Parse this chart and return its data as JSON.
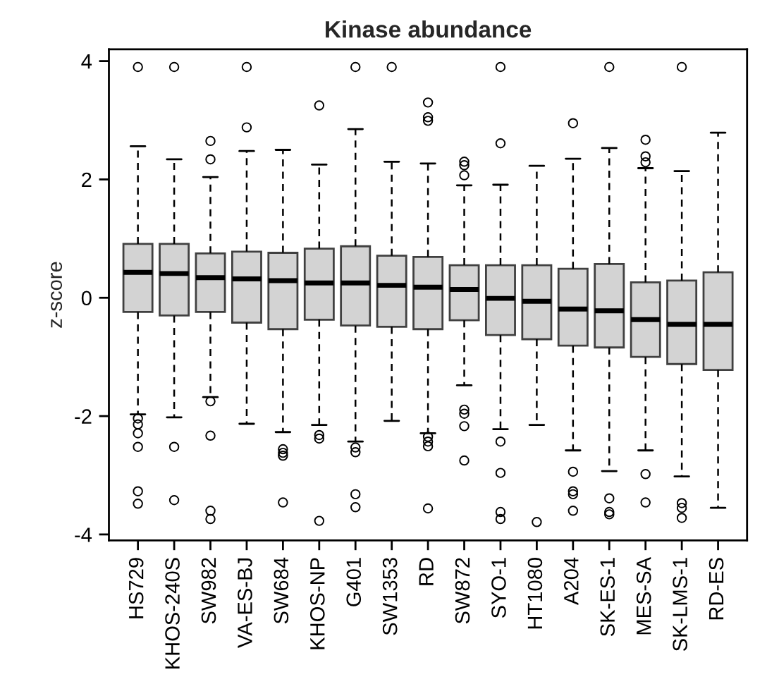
{
  "chart_data": {
    "type": "box",
    "title": "Kinase abundance",
    "ylabel": "z-score",
    "categories": [
      "HS729",
      "KHOS-240S",
      "SW982",
      "VA-ES-BJ",
      "SW684",
      "KHOS-NP",
      "G401",
      "SW1353",
      "RD",
      "SW872",
      "SYO-1",
      "HT1080",
      "A204",
      "SK-ES-1",
      "MES-SA",
      "SK-LMS-1",
      "RD-ES"
    ],
    "color": "#d3d3d3",
    "boxes": [
      {
        "low": -1.97,
        "q1": -0.24,
        "median": 0.43,
        "q3": 0.91,
        "high": 2.56,
        "outliers": [
          3.9,
          -2.04,
          -2.14,
          -2.29,
          -2.52,
          -3.27,
          -3.48
        ]
      },
      {
        "low": -2.02,
        "q1": -0.3,
        "median": 0.41,
        "q3": 0.91,
        "high": 2.34,
        "outliers": [
          3.9,
          -2.52,
          -3.42
        ]
      },
      {
        "low": -1.68,
        "q1": -0.24,
        "median": 0.34,
        "q3": 0.75,
        "high": 2.04,
        "outliers": [
          2.65,
          2.34,
          -1.75,
          -2.33,
          -3.6,
          -3.74
        ]
      },
      {
        "low": -2.13,
        "q1": -0.42,
        "median": 0.32,
        "q3": 0.78,
        "high": 2.48,
        "outliers": [
          3.9,
          2.88
        ]
      },
      {
        "low": -2.27,
        "q1": -0.53,
        "median": 0.29,
        "q3": 0.76,
        "high": 2.5,
        "outliers": [
          -2.56,
          -2.62,
          -2.67,
          -3.46
        ]
      },
      {
        "low": -2.15,
        "q1": -0.37,
        "median": 0.25,
        "q3": 0.83,
        "high": 2.25,
        "outliers": [
          3.25,
          -2.32,
          -2.38,
          -3.77
        ]
      },
      {
        "low": -2.43,
        "q1": -0.47,
        "median": 0.25,
        "q3": 0.87,
        "high": 2.85,
        "outliers": [
          3.9,
          -2.53,
          -2.61,
          -3.32,
          -3.54
        ]
      },
      {
        "low": -2.08,
        "q1": -0.49,
        "median": 0.21,
        "q3": 0.71,
        "high": 2.3,
        "outliers": [
          3.9
        ]
      },
      {
        "low": -2.29,
        "q1": -0.53,
        "median": 0.18,
        "q3": 0.69,
        "high": 2.27,
        "outliers": [
          3.3,
          3.05,
          2.99,
          -2.35,
          -2.43,
          -2.51,
          -3.56
        ]
      },
      {
        "low": -1.48,
        "q1": -0.38,
        "median": 0.14,
        "q3": 0.55,
        "high": 1.9,
        "outliers": [
          2.3,
          2.24,
          2.07,
          -1.89,
          -1.96,
          -2.17,
          -2.75
        ]
      },
      {
        "low": -2.22,
        "q1": -0.63,
        "median": -0.01,
        "q3": 0.55,
        "high": 1.91,
        "outliers": [
          3.9,
          2.61,
          -2.43,
          -2.96,
          -3.62,
          -3.74
        ]
      },
      {
        "low": -2.15,
        "q1": -0.7,
        "median": -0.06,
        "q3": 0.55,
        "high": 2.23,
        "outliers": [
          -3.79
        ]
      },
      {
        "low": -2.58,
        "q1": -0.81,
        "median": -0.19,
        "q3": 0.49,
        "high": 2.35,
        "outliers": [
          2.95,
          -2.94,
          -3.27,
          -3.32,
          -3.6
        ]
      },
      {
        "low": -2.93,
        "q1": -0.84,
        "median": -0.22,
        "q3": 0.57,
        "high": 2.53,
        "outliers": [
          3.9,
          -3.39,
          -3.62,
          -3.66
        ]
      },
      {
        "low": -2.58,
        "q1": -1.0,
        "median": -0.37,
        "q3": 0.26,
        "high": 2.19,
        "outliers": [
          2.67,
          2.39,
          2.29,
          -2.98,
          -3.46
        ]
      },
      {
        "low": -3.02,
        "q1": -1.12,
        "median": -0.45,
        "q3": 0.29,
        "high": 2.14,
        "outliers": [
          3.9,
          -3.47,
          -3.55,
          -3.72
        ]
      },
      {
        "low": -3.55,
        "q1": -1.22,
        "median": -0.45,
        "q3": 0.43,
        "high": 2.79
      }
    ],
    "ylim": [
      -4.1,
      4.2
    ],
    "yticks": [
      -4,
      -2,
      0,
      2,
      4
    ]
  }
}
